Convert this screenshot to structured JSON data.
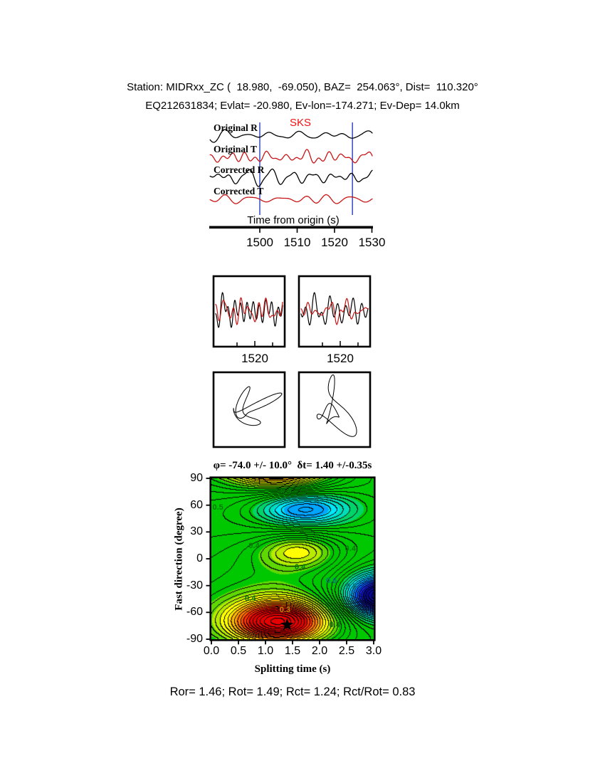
{
  "header": {
    "line1": "Station: MIDRxx_ZC (  18.980,  -69.050), BAZ=  254.063°, Dist=  110.320°",
    "line2": "EQ212631834; Evlat= -20.980, Ev-lon=-174.271; Ev-Dep= 14.0km"
  },
  "station": {
    "name": "MIDRxx_ZC",
    "lat": 18.98,
    "lon": -69.05,
    "baz_deg": 254.063,
    "dist_deg": 110.32
  },
  "event": {
    "id": "EQ212631834",
    "ev_lat": -20.98,
    "ev_lon": -174.271,
    "ev_dep_km": 14.0
  },
  "result": {
    "phi_deg": -74.0,
    "phi_err_deg": 10.0,
    "dt_s": 1.4,
    "dt_err_s": 0.35
  },
  "seismogram_panel": {
    "phase_label": "SKS",
    "trace_labels": [
      "Original R",
      "Original T",
      "Corrected R",
      "Corrected T"
    ],
    "axis_label": "Time from origin (s)",
    "tick_labels": [
      "1500",
      "1510",
      "1520",
      "1530"
    ]
  },
  "window_panels": {
    "tick_label": "1520"
  },
  "contour_panel": {
    "title": "φ= -74.0 +/- 10.0°  δt= 1.40 +/-0.35s",
    "xlabel": "Splitting time (s)",
    "ylabel": "Fast direction (degree)",
    "xtick_labels": [
      "0.0",
      "0.5",
      "1.0",
      "1.5",
      "2.0",
      "2.5",
      "3.0"
    ],
    "ytick_labels": [
      "90",
      "60",
      "30",
      "0",
      "-30",
      "-60",
      "-90"
    ]
  },
  "footer": {
    "text": "Ror= 1.46; Rot= 1.49; Rct= 1.24; Rct/Rot= 0.83",
    "Ror": 1.46,
    "Rot": 1.49,
    "Rct": 1.24,
    "Rct_over_Rot": 0.83
  },
  "colors": {
    "trace_r": "#000000",
    "trace_t": "#c81414",
    "phase": "#ee1111",
    "window_marker": "#4455cc",
    "background_green": "#00c800"
  },
  "chart_data": [
    {
      "id": "seismograms",
      "type": "line",
      "x_label": "Time from origin (s)",
      "x_range": [
        1486.7,
        1530.1
      ],
      "x_ticks": [
        1500,
        1510,
        1520,
        1530
      ],
      "analysis_window": [
        1500.0,
        1524.8
      ],
      "phase": {
        "label": "SKS",
        "time": 1510.5
      },
      "series": [
        {
          "name": "Original R",
          "color": "#000000"
        },
        {
          "name": "Original T",
          "color": "#c81414"
        },
        {
          "name": "Corrected R",
          "color": "#000000"
        },
        {
          "name": "Corrected T",
          "color": "#c81414"
        }
      ]
    },
    {
      "id": "window-comparison",
      "type": "line",
      "x_tick": 1520,
      "panels": [
        {
          "series": [
            {
              "color": "#000000"
            },
            {
              "color": "#c81414"
            }
          ]
        },
        {
          "series": [
            {
              "color": "#000000"
            },
            {
              "color": "#c81414"
            }
          ]
        }
      ]
    },
    {
      "id": "particle-motion",
      "type": "line",
      "panels": 2
    },
    {
      "id": "energy-map",
      "type": "heatmap",
      "title": "φ= -74.0 +/- 10.0°  δt= 1.40 +/-0.35s",
      "xlabel": "Splitting time (s)",
      "ylabel": "Fast direction (degree)",
      "xlim": [
        0,
        3
      ],
      "ylim": [
        -90,
        90
      ],
      "xticks": [
        0,
        0.5,
        1,
        1.5,
        2,
        2.5,
        3
      ],
      "yticks": [
        90,
        60,
        30,
        0,
        -30,
        -60,
        -90
      ],
      "best_fit": {
        "dt": 1.4,
        "phi": -74
      },
      "contour_interval": 0.06,
      "features": [
        {
          "cx": 1.25,
          "cy": -71,
          "sx": 0.62,
          "sy": 17,
          "amp": 1.04
        },
        {
          "cx": 1.3,
          "cy": -68,
          "sx": 1.35,
          "sy": 36,
          "amp": 0.3
        },
        {
          "cx": 1.62,
          "cy": 8,
          "sx": 0.48,
          "sy": 13,
          "amp": 0.34
        },
        {
          "cx": 1.62,
          "cy": 10,
          "sx": 1.0,
          "sy": 28,
          "amp": 0.17
        },
        {
          "cx": 1.72,
          "cy": 55,
          "sx": 0.6,
          "sy": 13,
          "amp": -0.52
        },
        {
          "cx": 1.72,
          "cy": 55,
          "sx": 1.3,
          "sy": 28,
          "amp": -0.22
        },
        {
          "cx": 3.1,
          "cy": -42,
          "sx": 0.42,
          "sy": 16,
          "amp": -0.95
        },
        {
          "cx": 3.1,
          "cy": -42,
          "sx": 0.9,
          "sy": 35,
          "amp": -0.3
        }
      ],
      "contour_labels": [
        {
          "text": "0.4",
          "dt": 1.38,
          "phi": 76,
          "color": "#047804"
        },
        {
          "text": "0.6",
          "dt": 1.99,
          "phi": 66,
          "color": "#067878"
        },
        {
          "text": "0.5",
          "dt": 0.12,
          "phi": 57,
          "color": "#047804"
        },
        {
          "text": "0.6",
          "dt": 1.62,
          "phi": 32.7,
          "color": "#047804"
        },
        {
          "text": "0.4",
          "dt": 0.79,
          "phi": 14.3,
          "color": "#047804"
        },
        {
          "text": "0.4",
          "dt": 2.57,
          "phi": 11.2,
          "color": "#047804"
        },
        {
          "text": "0.4",
          "dt": 1.64,
          "phi": -9.6,
          "color": "#047804"
        },
        {
          "text": "0.6",
          "dt": 2.22,
          "phi": -24.7,
          "color": "#067878"
        },
        {
          "text": "0.8",
          "dt": 2.59,
          "phi": -31.1,
          "color": "#067878"
        },
        {
          "text": "0.4",
          "dt": 0.72,
          "phi": -44.6,
          "color": "#047804"
        },
        {
          "text": "0.3",
          "dt": 1.36,
          "phi": -57.4,
          "color": "#c88a00"
        },
        {
          "text": "0.4",
          "dt": 2.28,
          "phi": -74.1,
          "color": "#047804"
        }
      ]
    }
  ]
}
